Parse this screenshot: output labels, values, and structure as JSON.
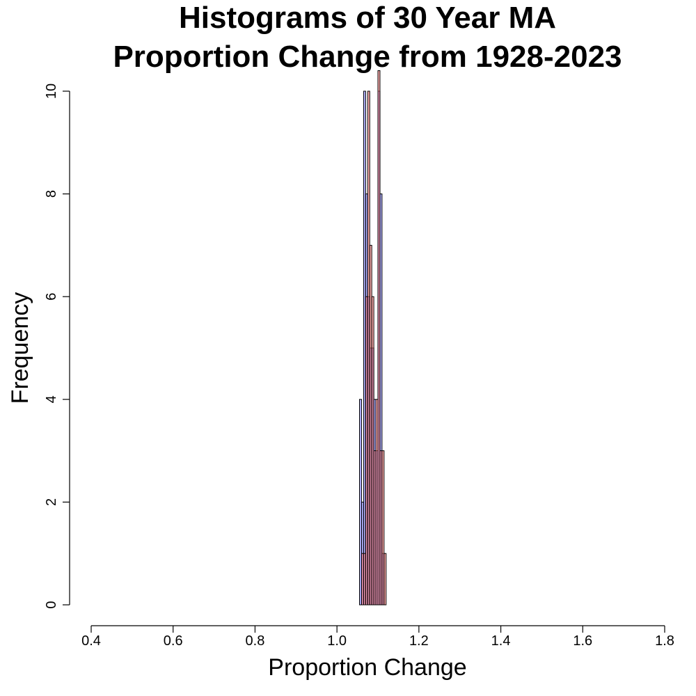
{
  "chart_data": {
    "type": "bar",
    "title_lines": [
      "Histograms of 30 Year MA",
      "Proportion Change from 1928-2023"
    ],
    "xlabel": "Proportion Change",
    "ylabel": "Frequency",
    "xlim": [
      0.4,
      1.8
    ],
    "ylim": [
      0,
      10
    ],
    "x_ticks": [
      "0.4",
      "0.6",
      "0.8",
      "1.0",
      "1.2",
      "1.4",
      "1.6",
      "1.8"
    ],
    "y_ticks": [
      "0",
      "2",
      "4",
      "6",
      "8",
      "10"
    ],
    "bin_width": 0.005,
    "series": [
      {
        "color": "rgba(115,115,255,0.55)",
        "bins": [
          {
            "x0": 1.055,
            "count": 4
          },
          {
            "x0": 1.06,
            "count": 2
          },
          {
            "x0": 1.065,
            "count": 10
          },
          {
            "x0": 1.07,
            "count": 8
          },
          {
            "x0": 1.075,
            "count": 6
          },
          {
            "x0": 1.08,
            "count": 5
          },
          {
            "x0": 1.085,
            "count": 5
          },
          {
            "x0": 1.09,
            "count": 4
          },
          {
            "x0": 1.095,
            "count": 3
          },
          {
            "x0": 1.1,
            "count": 10
          },
          {
            "x0": 1.105,
            "count": 8
          },
          {
            "x0": 1.11,
            "count": 1
          }
        ]
      },
      {
        "color": "rgba(255,120,120,0.6)",
        "bins": [
          {
            "x0": 1.06,
            "count": 1
          },
          {
            "x0": 1.065,
            "count": 1
          },
          {
            "x0": 1.07,
            "count": 6
          },
          {
            "x0": 1.075,
            "count": 10
          },
          {
            "x0": 1.08,
            "count": 7
          },
          {
            "x0": 1.085,
            "count": 6
          },
          {
            "x0": 1.09,
            "count": 3
          },
          {
            "x0": 1.095,
            "count": 4
          },
          {
            "x0": 1.1,
            "count": 10.4
          },
          {
            "x0": 1.105,
            "count": 3
          },
          {
            "x0": 1.11,
            "count": 3
          },
          {
            "x0": 1.115,
            "count": 1
          }
        ]
      }
    ]
  }
}
